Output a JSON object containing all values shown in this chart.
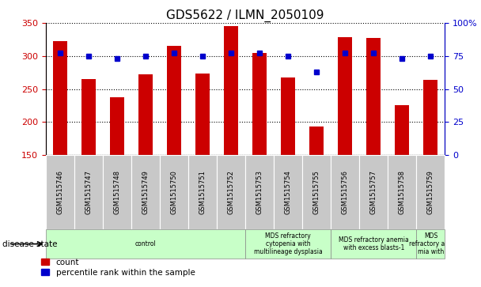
{
  "title": "GDS5622 / ILMN_2050109",
  "samples": [
    "GSM1515746",
    "GSM1515747",
    "GSM1515748",
    "GSM1515749",
    "GSM1515750",
    "GSM1515751",
    "GSM1515752",
    "GSM1515753",
    "GSM1515754",
    "GSM1515755",
    "GSM1515756",
    "GSM1515757",
    "GSM1515758",
    "GSM1515759"
  ],
  "counts": [
    323,
    265,
    238,
    272,
    315,
    273,
    345,
    305,
    267,
    193,
    328,
    327,
    226,
    264
  ],
  "percentiles": [
    77,
    75,
    73,
    75,
    77,
    75,
    77,
    77,
    75,
    63,
    77,
    77,
    73,
    75
  ],
  "ylim_left": [
    150,
    350
  ],
  "ylim_right": [
    0,
    100
  ],
  "yticks_left": [
    150,
    200,
    250,
    300,
    350
  ],
  "yticks_right": [
    0,
    25,
    50,
    75,
    100
  ],
  "ytick_labels_right": [
    "0",
    "25",
    "50",
    "75",
    "100%"
  ],
  "bar_color": "#cc0000",
  "dot_color": "#0000cc",
  "bg_color": "#ffffff",
  "disease_groups": [
    {
      "label": "control",
      "start": 0,
      "end": 7
    },
    {
      "label": "MDS refractory\ncytopenia with\nmultilineage dysplasia",
      "start": 7,
      "end": 10
    },
    {
      "label": "MDS refractory anemia\nwith excess blasts-1",
      "start": 10,
      "end": 13
    },
    {
      "label": "MDS\nrefractory ane\nmia with",
      "start": 13,
      "end": 14
    }
  ],
  "legend_count_label": "count",
  "legend_pct_label": "percentile rank within the sample",
  "tick_label_color_left": "#cc0000",
  "tick_label_color_right": "#0000cc",
  "title_fontsize": 11,
  "tick_fontsize": 8,
  "bar_width": 0.5,
  "sample_box_color": "#c8c8c8",
  "green_box_color": "#c8ffc8",
  "green_box_border": "#888888"
}
